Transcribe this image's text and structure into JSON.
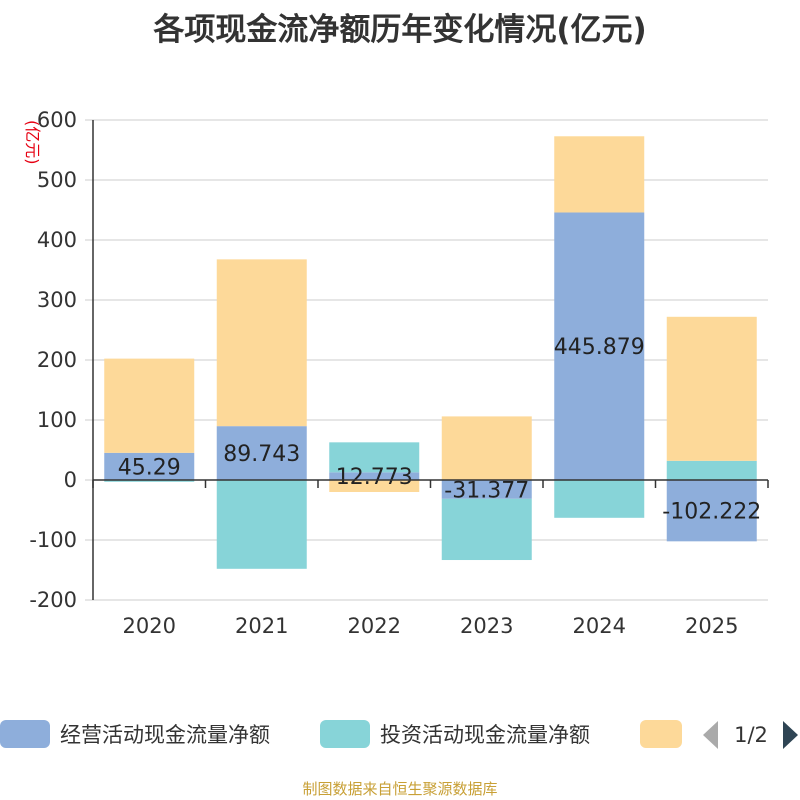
{
  "chart_data": {
    "type": "bar",
    "stacked": true,
    "title": "各项现金流净额历年变化情况(亿元)",
    "ylabel": "(亿元)",
    "xlabel": "",
    "ylim": [
      -200,
      600
    ],
    "yticks": [
      "600",
      "500",
      "400",
      "300",
      "200",
      "100",
      "0",
      "-100",
      "-200"
    ],
    "grid": true,
    "categories": [
      "2020",
      "2021",
      "2022",
      "2023",
      "2024",
      "2025"
    ],
    "series": [
      {
        "name": "经营活动现金流量净额",
        "color": "#8eaedb",
        "values": [
          45.29,
          89.743,
          12.773,
          -31.377,
          445.879,
          -102.222
        ],
        "labels": [
          "45.29",
          "89.743",
          "12.773",
          "-31.377",
          "445.879",
          "-102.222"
        ]
      },
      {
        "name": "投资活动现金流量净额",
        "color": "#87d4d8",
        "values": [
          -3,
          -148,
          50,
          -102,
          -63,
          32
        ]
      },
      {
        "name": "",
        "color": "#fdd999",
        "values": [
          157,
          278,
          -20,
          106,
          127,
          240
        ]
      }
    ],
    "legend_position": "bottom",
    "legend_page": "1/2"
  },
  "footer": {
    "source_text": "制图数据来自恒生聚源数据库"
  }
}
